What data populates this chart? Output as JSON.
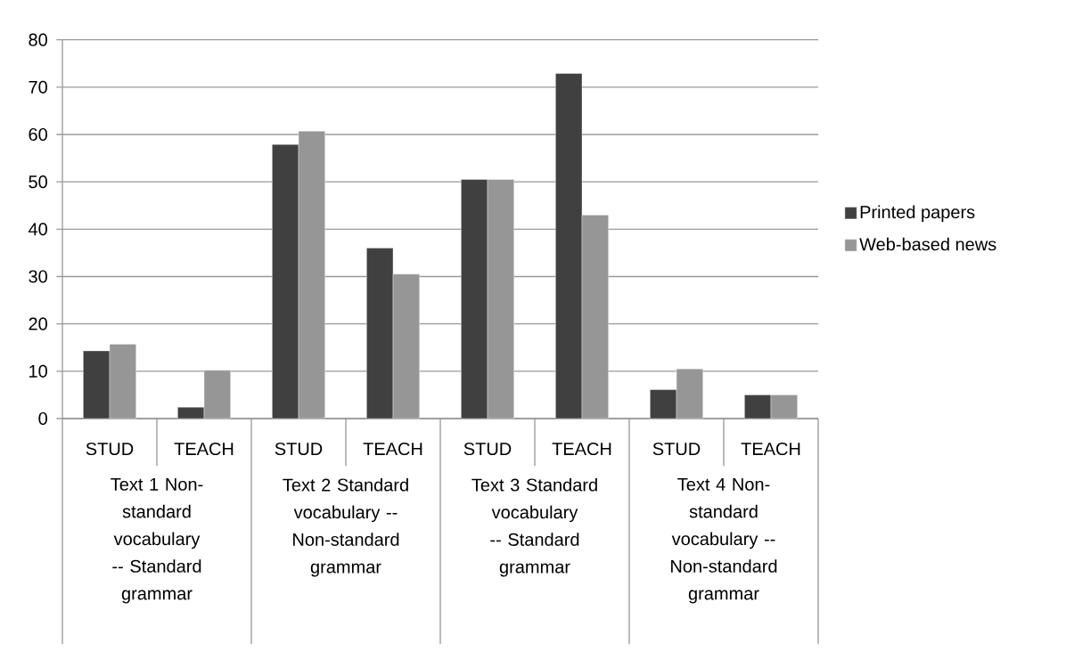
{
  "chart_data": {
    "type": "bar",
    "categories": [
      "STUD",
      "TEACH",
      "STUD",
      "TEACH",
      "STUD",
      "TEACH",
      "STUD",
      "TEACH"
    ],
    "series": [
      {
        "name": "Printed papers",
        "color": "#404040",
        "values": [
          14.3,
          2.4,
          57.9,
          36.0,
          50.5,
          72.9,
          6.1,
          5.0
        ]
      },
      {
        "name": "Web-based news",
        "color": "#969696",
        "values": [
          15.7,
          10.2,
          60.7,
          30.5,
          50.5,
          43.0,
          10.5,
          5.0
        ]
      }
    ],
    "ylim": [
      0,
      80
    ],
    "yticks": [
      0,
      10,
      20,
      30,
      40,
      50,
      60,
      70,
      80
    ],
    "grid": "y",
    "legend": "right",
    "annotations": [
      "Text 1 Non-standard vocabulary -- Standard grammar",
      "Text 2 Standard vocabulary -- Non-standard grammar",
      "Text 3 Standard vocabulary -- Standard grammar",
      "Text 4 Non-standard vocabulary -- Non-standard grammar"
    ]
  }
}
